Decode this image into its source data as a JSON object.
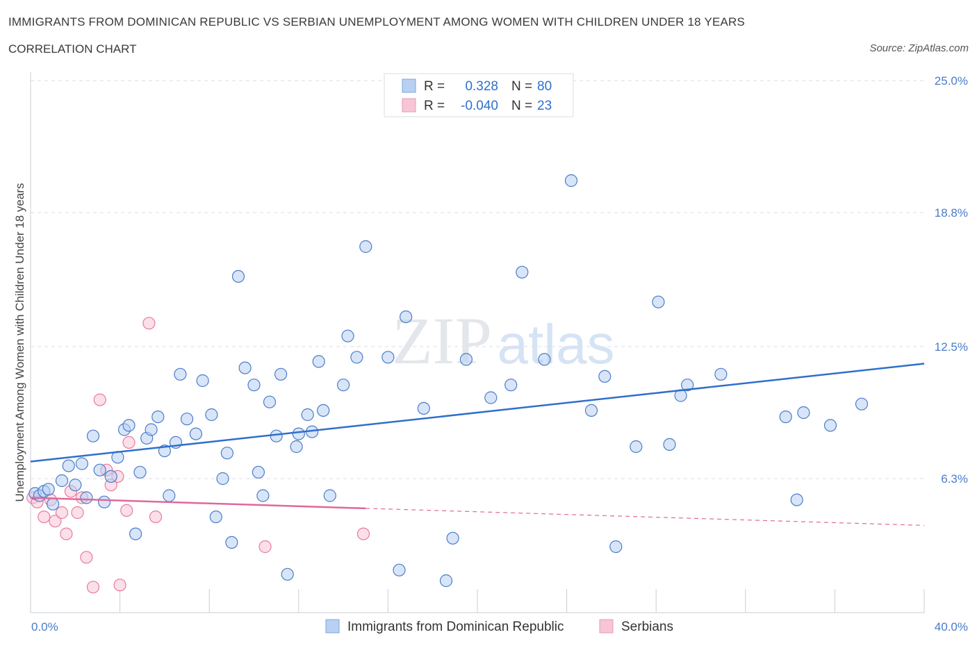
{
  "header": {
    "title": "IMMIGRANTS FROM DOMINICAN REPUBLIC VS SERBIAN UNEMPLOYMENT AMONG WOMEN WITH CHILDREN UNDER 18 YEARS",
    "subtitle": "CORRELATION CHART",
    "source": "Source: ZipAtlas.com"
  },
  "watermark": {
    "zip": "ZIP",
    "atlas": "atlas"
  },
  "colors": {
    "blue": "#4a7cc9",
    "blue_fill": "#b8d0f2",
    "blue_line": "#2f6fcc",
    "pink": "#e87aa0",
    "pink_fill": "#f7c6d6",
    "pink_line": "#e0689a",
    "grid": "#d8dde3"
  },
  "legend": {
    "r_label": "R =",
    "n_label": "N =",
    "rows": [
      {
        "r": "0.328",
        "n": "80"
      },
      {
        "r": "-0.040",
        "n": "23"
      }
    ]
  },
  "chart_data": {
    "type": "scatter",
    "xlabel": "",
    "ylabel": "Unemployment Among Women with Children Under 18 years",
    "x_tick_labels": [
      "0.0%",
      "40.0%"
    ],
    "y_tick_labels": [
      "6.3%",
      "12.5%",
      "18.8%",
      "25.0%"
    ],
    "y_ticks": [
      6.3,
      12.5,
      18.8,
      25.0
    ],
    "xlim": [
      0,
      40
    ],
    "ylim": [
      0,
      25
    ],
    "grid": true,
    "legend_position": "top-center",
    "series": [
      {
        "name": "Immigrants from Dominican Republic",
        "r": 0.328,
        "n": 80,
        "trend": {
          "x0": 0,
          "y0": 7.1,
          "x1": 40,
          "y1": 11.7
        },
        "points": [
          [
            0.2,
            5.6
          ],
          [
            0.4,
            5.5
          ],
          [
            0.6,
            5.7
          ],
          [
            0.8,
            5.8
          ],
          [
            1.0,
            5.1
          ],
          [
            1.4,
            6.2
          ],
          [
            1.7,
            6.9
          ],
          [
            2.0,
            6.0
          ],
          [
            2.3,
            7.0
          ],
          [
            2.5,
            5.4
          ],
          [
            2.8,
            8.3
          ],
          [
            3.1,
            6.7
          ],
          [
            3.3,
            5.2
          ],
          [
            3.6,
            6.4
          ],
          [
            3.9,
            7.3
          ],
          [
            4.2,
            8.6
          ],
          [
            4.4,
            8.8
          ],
          [
            4.7,
            3.7
          ],
          [
            4.9,
            6.6
          ],
          [
            5.2,
            8.2
          ],
          [
            5.4,
            8.6
          ],
          [
            5.7,
            9.2
          ],
          [
            6.0,
            7.6
          ],
          [
            6.2,
            5.5
          ],
          [
            6.5,
            8.0
          ],
          [
            6.7,
            11.2
          ],
          [
            7.0,
            9.1
          ],
          [
            7.4,
            8.4
          ],
          [
            7.7,
            10.9
          ],
          [
            8.1,
            9.3
          ],
          [
            8.3,
            4.5
          ],
          [
            8.6,
            6.3
          ],
          [
            8.8,
            7.5
          ],
          [
            9.0,
            3.3
          ],
          [
            9.3,
            15.8
          ],
          [
            9.6,
            11.5
          ],
          [
            10.0,
            10.7
          ],
          [
            10.2,
            6.6
          ],
          [
            10.4,
            5.5
          ],
          [
            10.7,
            9.9
          ],
          [
            11.0,
            8.3
          ],
          [
            11.2,
            11.2
          ],
          [
            11.5,
            1.8
          ],
          [
            11.9,
            7.8
          ],
          [
            12.0,
            8.4
          ],
          [
            12.4,
            9.3
          ],
          [
            12.6,
            8.5
          ],
          [
            12.9,
            11.8
          ],
          [
            13.1,
            9.5
          ],
          [
            13.4,
            5.5
          ],
          [
            14.0,
            10.7
          ],
          [
            14.2,
            13.0
          ],
          [
            14.6,
            12.0
          ],
          [
            15.0,
            17.2
          ],
          [
            16.0,
            12.0
          ],
          [
            16.5,
            2.0
          ],
          [
            16.8,
            13.9
          ],
          [
            17.6,
            9.6
          ],
          [
            18.6,
            1.5
          ],
          [
            18.9,
            3.5
          ],
          [
            19.5,
            11.9
          ],
          [
            20.6,
            10.1
          ],
          [
            21.5,
            10.7
          ],
          [
            22.0,
            16.0
          ],
          [
            23.0,
            11.9
          ],
          [
            24.2,
            20.3
          ],
          [
            25.1,
            9.5
          ],
          [
            25.7,
            11.1
          ],
          [
            26.2,
            3.1
          ],
          [
            27.1,
            7.8
          ],
          [
            28.1,
            14.6
          ],
          [
            28.6,
            7.9
          ],
          [
            29.1,
            10.2
          ],
          [
            29.4,
            10.7
          ],
          [
            30.9,
            11.2
          ],
          [
            33.8,
            9.2
          ],
          [
            34.3,
            5.3
          ],
          [
            34.6,
            9.4
          ],
          [
            35.8,
            8.8
          ],
          [
            37.2,
            9.8
          ]
        ]
      },
      {
        "name": "Serbians",
        "r": -0.04,
        "n": 23,
        "trend": {
          "x0": 0,
          "y0": 5.4,
          "x1": 15,
          "y1": 4.9,
          "dash_x1": 40,
          "dash_y1": 4.1
        },
        "points": [
          [
            0.1,
            5.4
          ],
          [
            0.3,
            5.2
          ],
          [
            0.6,
            4.5
          ],
          [
            0.9,
            5.3
          ],
          [
            1.1,
            4.3
          ],
          [
            1.4,
            4.7
          ],
          [
            1.6,
            3.7
          ],
          [
            1.8,
            5.7
          ],
          [
            2.1,
            4.7
          ],
          [
            2.3,
            5.4
          ],
          [
            2.5,
            2.6
          ],
          [
            2.8,
            1.2
          ],
          [
            3.1,
            10.0
          ],
          [
            3.4,
            6.7
          ],
          [
            3.6,
            6.0
          ],
          [
            3.9,
            6.4
          ],
          [
            4.0,
            1.3
          ],
          [
            4.3,
            4.8
          ],
          [
            4.4,
            8.0
          ],
          [
            5.3,
            13.6
          ],
          [
            5.6,
            4.5
          ],
          [
            10.5,
            3.1
          ],
          [
            14.9,
            3.7
          ]
        ]
      }
    ]
  },
  "bottom_legend": {
    "items": [
      "Immigrants from Dominican Republic",
      "Serbians"
    ]
  }
}
